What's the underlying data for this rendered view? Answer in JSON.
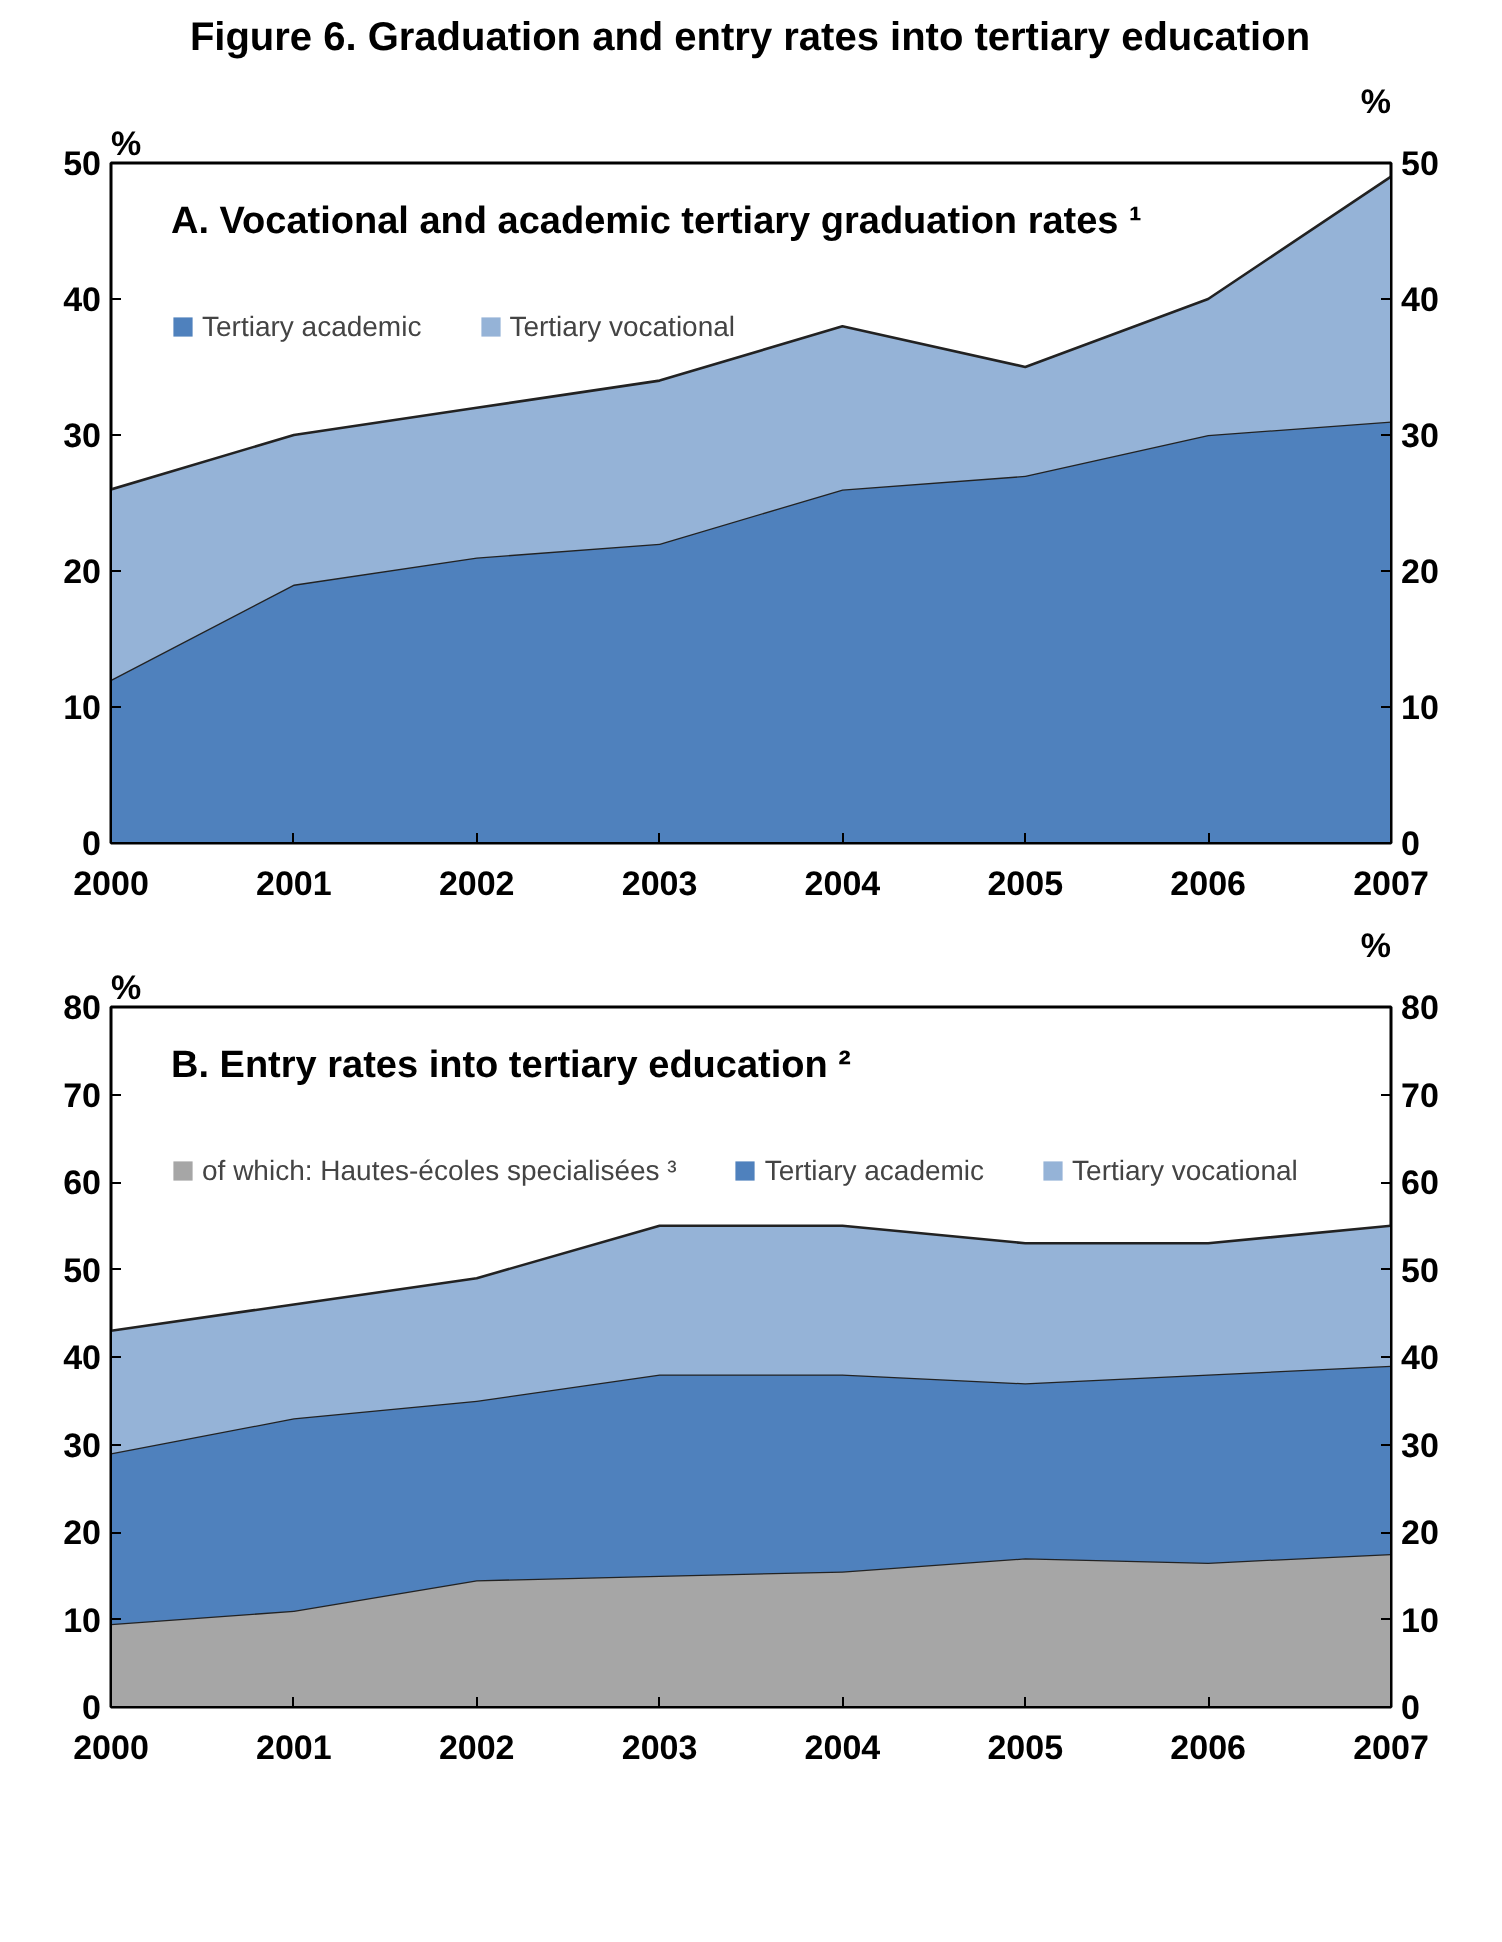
{
  "chart_data": [
    {
      "type": "area",
      "stacked": true,
      "title": "A.  Vocational and academic tertiary graduation rates ¹",
      "annotations": [
        "Figure 6. Graduation and entry rates into tertiary education"
      ],
      "ylabel": "%",
      "y2label": "%",
      "x": [
        2000,
        2001,
        2002,
        2003,
        2004,
        2005,
        2006,
        2007
      ],
      "xlim": [
        2000,
        2007
      ],
      "xticks": [
        2000,
        2001,
        2002,
        2003,
        2004,
        2005,
        2006,
        2007
      ],
      "ylim": [
        0,
        50
      ],
      "yticks": [
        0,
        10,
        20,
        30,
        40,
        50
      ],
      "y2lim": [
        0,
        50
      ],
      "y2ticks": [
        0,
        10,
        20,
        30,
        40,
        50
      ],
      "grid": false,
      "legend": "top left",
      "series": [
        {
          "name": "Tertiary academic",
          "color": "#4f81bd",
          "values": [
            12,
            19,
            21,
            22,
            26,
            27,
            30,
            31
          ]
        },
        {
          "name": "Tertiary vocational",
          "color": "#95b3d7",
          "values": [
            14,
            11,
            11,
            12,
            12,
            8,
            10,
            18
          ]
        }
      ]
    },
    {
      "type": "area",
      "stacked": true,
      "title": "B.  Entry rates into tertiary education ²",
      "ylabel": "%",
      "y2label": "%",
      "x": [
        2000,
        2001,
        2002,
        2003,
        2004,
        2005,
        2006,
        2007
      ],
      "xlim": [
        2000,
        2007
      ],
      "xticks": [
        2000,
        2001,
        2002,
        2003,
        2004,
        2005,
        2006,
        2007
      ],
      "ylim": [
        0,
        80
      ],
      "yticks": [
        0,
        10,
        20,
        30,
        40,
        50,
        60,
        70,
        80
      ],
      "y2lim": [
        0,
        80
      ],
      "y2ticks": [
        0,
        10,
        20,
        30,
        40,
        50,
        60,
        70,
        80
      ],
      "grid": false,
      "legend": "top left",
      "series": [
        {
          "name": "of which: Hautes-écoles specialisées ³",
          "color": "#a6a6a6",
          "values": [
            9.5,
            11,
            14.5,
            15,
            15.5,
            17,
            16.5,
            17.5
          ]
        },
        {
          "name": "Tertiary academic",
          "color": "#4f81bd",
          "values": [
            19.5,
            22,
            20.5,
            23,
            22.5,
            20,
            21.5,
            21.5
          ]
        },
        {
          "name": "Tertiary vocational",
          "color": "#95b3d7",
          "values": [
            14,
            13,
            14,
            17,
            17,
            16,
            15,
            16
          ]
        }
      ]
    }
  ]
}
